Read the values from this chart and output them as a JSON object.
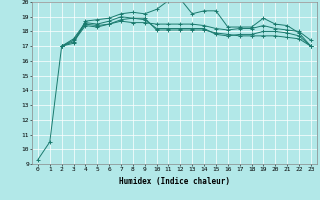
{
  "xlabel": "Humidex (Indice chaleur)",
  "xlim": [
    -0.5,
    23.5
  ],
  "ylim": [
    9,
    20
  ],
  "yticks": [
    9,
    10,
    11,
    12,
    13,
    14,
    15,
    16,
    17,
    18,
    19,
    20
  ],
  "xticks": [
    0,
    1,
    2,
    3,
    4,
    5,
    6,
    7,
    8,
    9,
    10,
    11,
    12,
    13,
    14,
    15,
    16,
    17,
    18,
    19,
    20,
    21,
    22,
    23
  ],
  "background_color": "#b2e8e8",
  "grid_color": "#ffffff",
  "line_color": "#1a7a6e",
  "series": [
    [
      9.3,
      10.5,
      17.0,
      17.2,
      18.7,
      18.8,
      18.9,
      19.2,
      19.3,
      19.2,
      19.5,
      20.1,
      20.2,
      19.2,
      19.4,
      19.4,
      18.3,
      18.3,
      18.3,
      18.9,
      18.5,
      18.4,
      17.9,
      17.0
    ],
    [
      null,
      null,
      17.0,
      17.5,
      18.6,
      18.5,
      18.7,
      19.0,
      18.9,
      18.9,
      18.1,
      18.1,
      18.1,
      18.1,
      18.1,
      17.9,
      17.8,
      17.7,
      17.7,
      17.7,
      17.7,
      17.6,
      17.5,
      17.0
    ],
    [
      null,
      null,
      17.0,
      17.4,
      18.5,
      18.4,
      18.5,
      18.7,
      18.6,
      18.6,
      18.5,
      18.5,
      18.5,
      18.5,
      18.4,
      18.2,
      18.1,
      18.2,
      18.2,
      18.4,
      18.2,
      18.1,
      18.0,
      17.4
    ],
    [
      null,
      null,
      17.0,
      17.3,
      18.4,
      18.3,
      18.5,
      18.8,
      18.9,
      18.8,
      18.2,
      18.2,
      18.2,
      18.2,
      18.2,
      17.8,
      17.7,
      17.8,
      17.8,
      18.0,
      18.0,
      17.9,
      17.7,
      17.0
    ]
  ]
}
